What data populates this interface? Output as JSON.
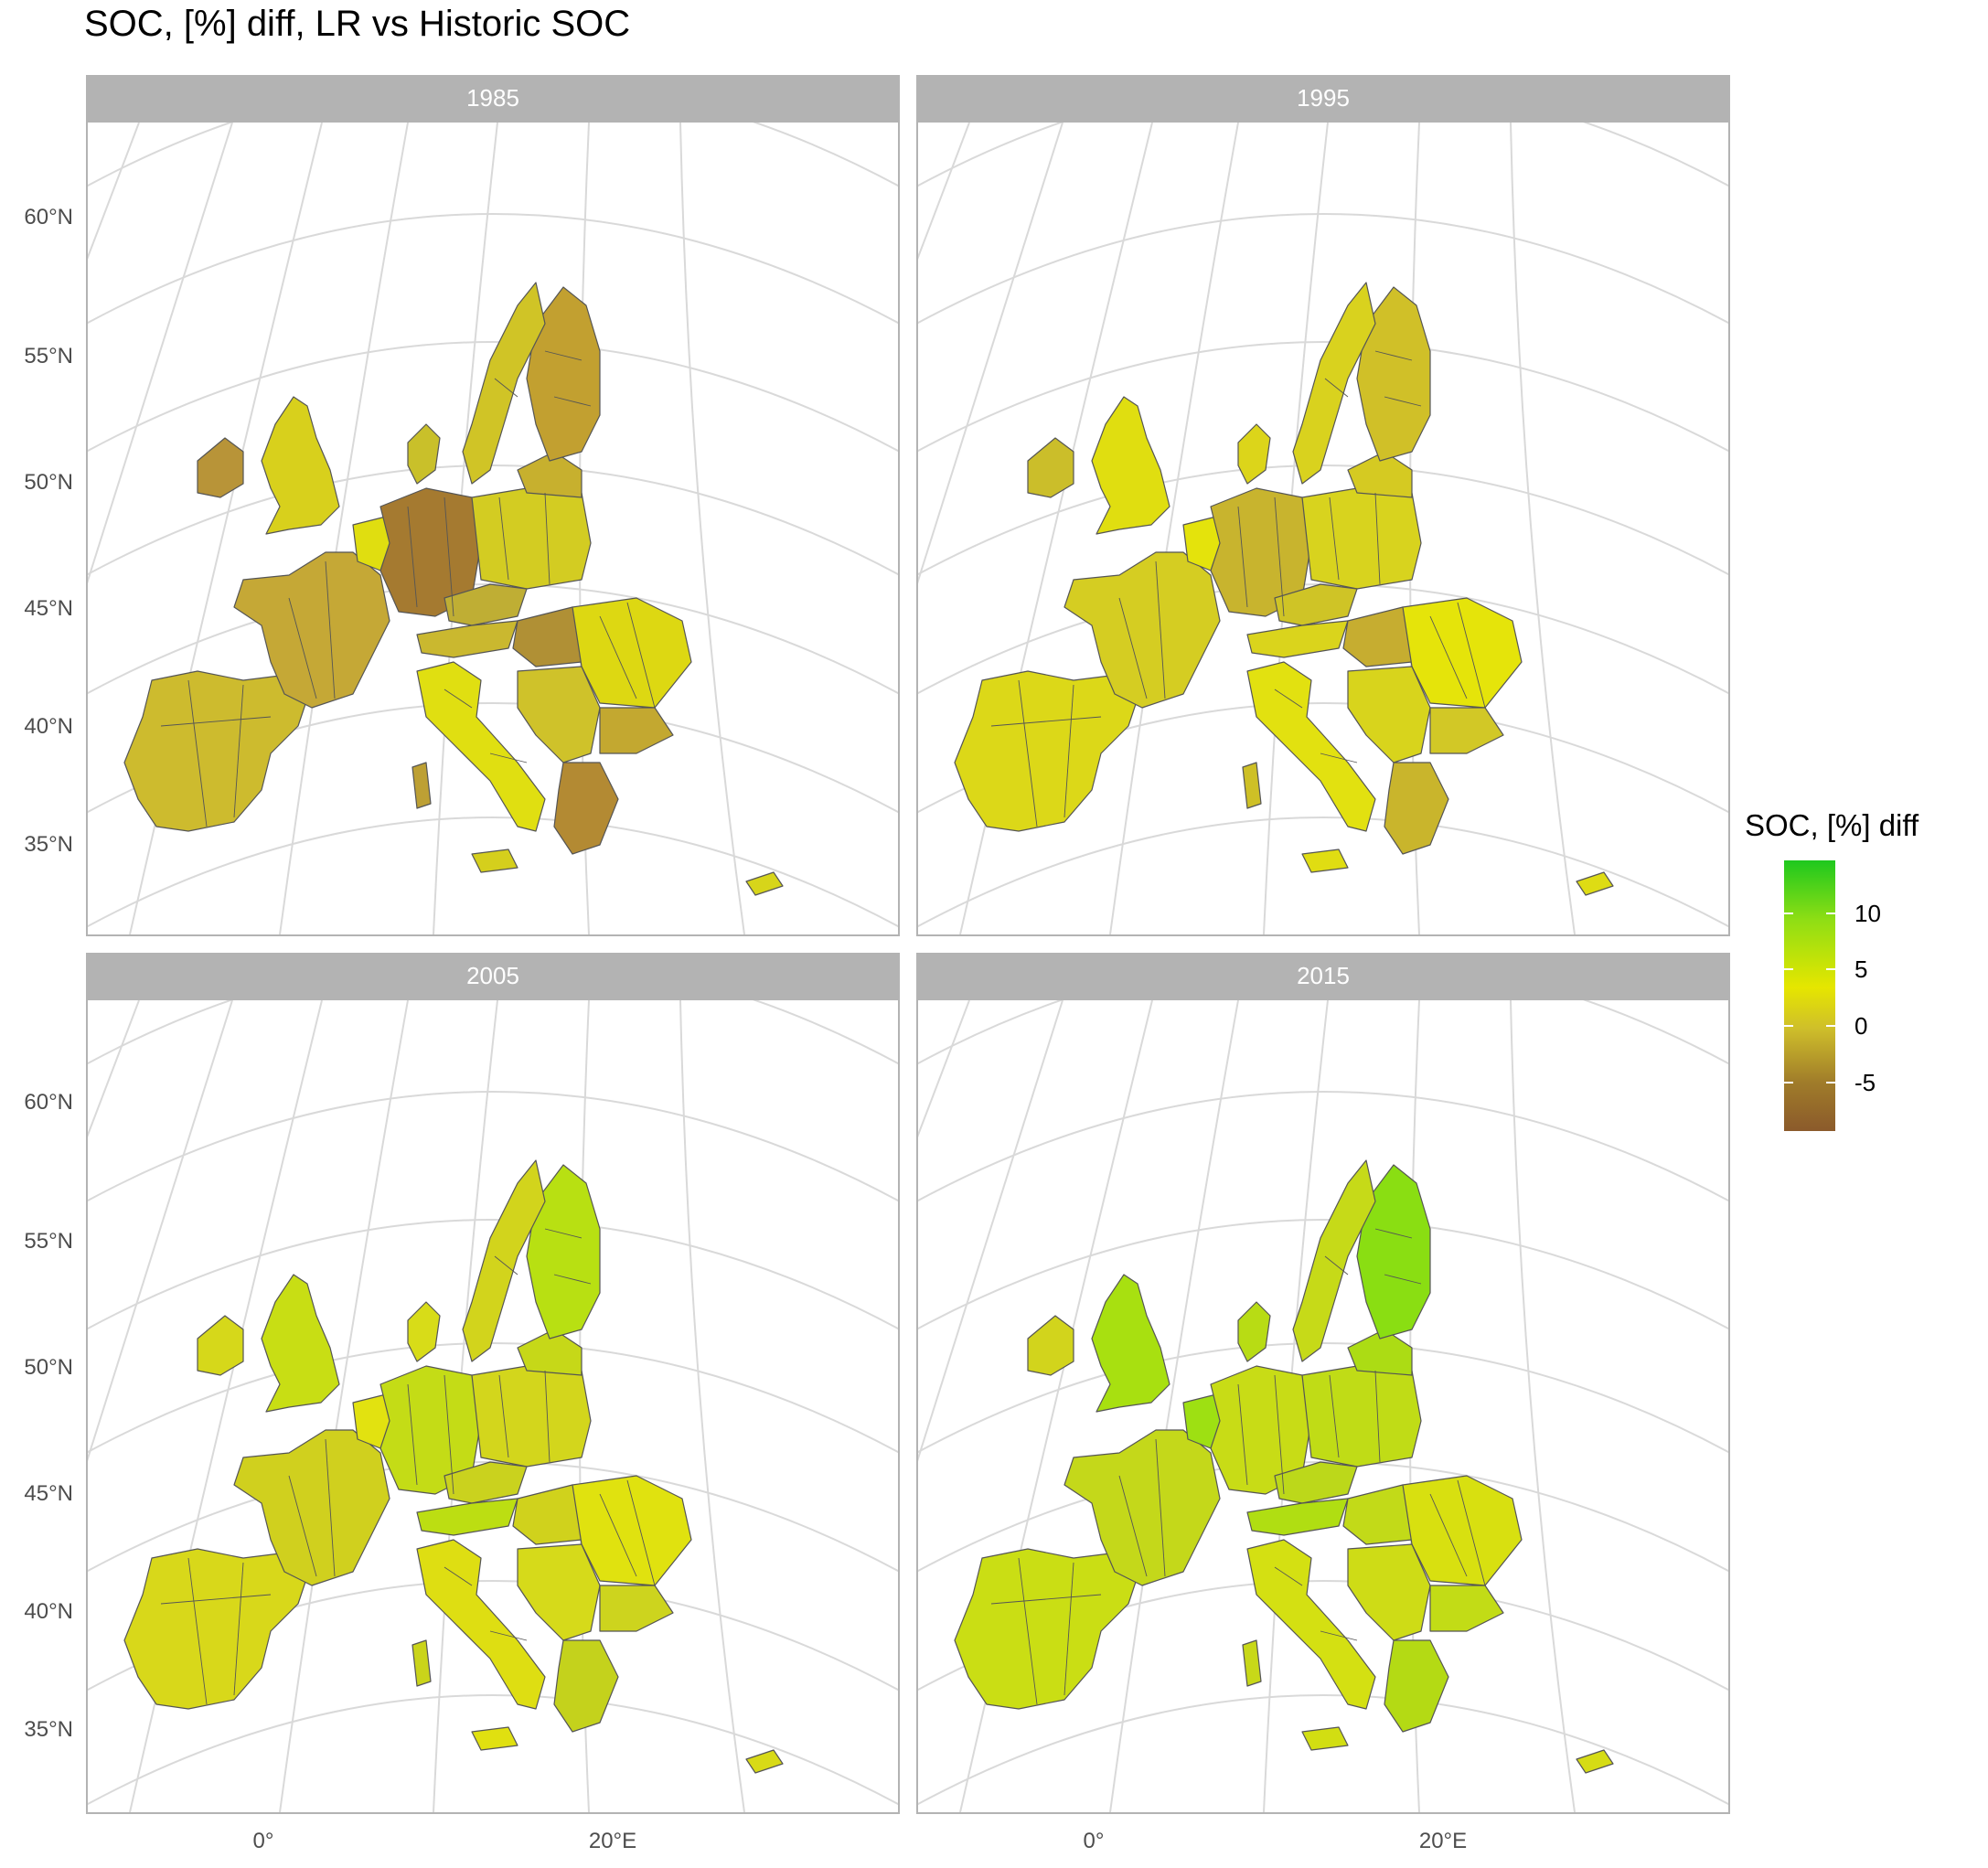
{
  "title": "SOC, [%] diff, LR vs Historic SOC",
  "panels": [
    {
      "label": "1985",
      "palette": "mixed_brown"
    },
    {
      "label": "1995",
      "palette": "mostly_yellow"
    },
    {
      "label": "2005",
      "palette": "yellow_green"
    },
    {
      "label": "2015",
      "palette": "green"
    }
  ],
  "axes": {
    "latitude_labels": [
      "60°N",
      "55°N",
      "50°N",
      "45°N",
      "40°N",
      "35°N"
    ],
    "longitude_labels": [
      "0°",
      "20°E"
    ]
  },
  "legend": {
    "title": "SOC, [%] diff",
    "breaks": [
      "10",
      "5",
      "0",
      "-5"
    ],
    "colors": {
      "high": "#1ec81e",
      "mid_high": "#8fde14",
      "mid": "#e6e600",
      "low": "#cfbf2a",
      "lowest": "#8b5a2b"
    }
  },
  "colors": {
    "panel_strip": "#b3b3b3",
    "graticule": "#d9d9d9",
    "border": "#555555",
    "sea_outline": "#4d4d4d"
  }
}
